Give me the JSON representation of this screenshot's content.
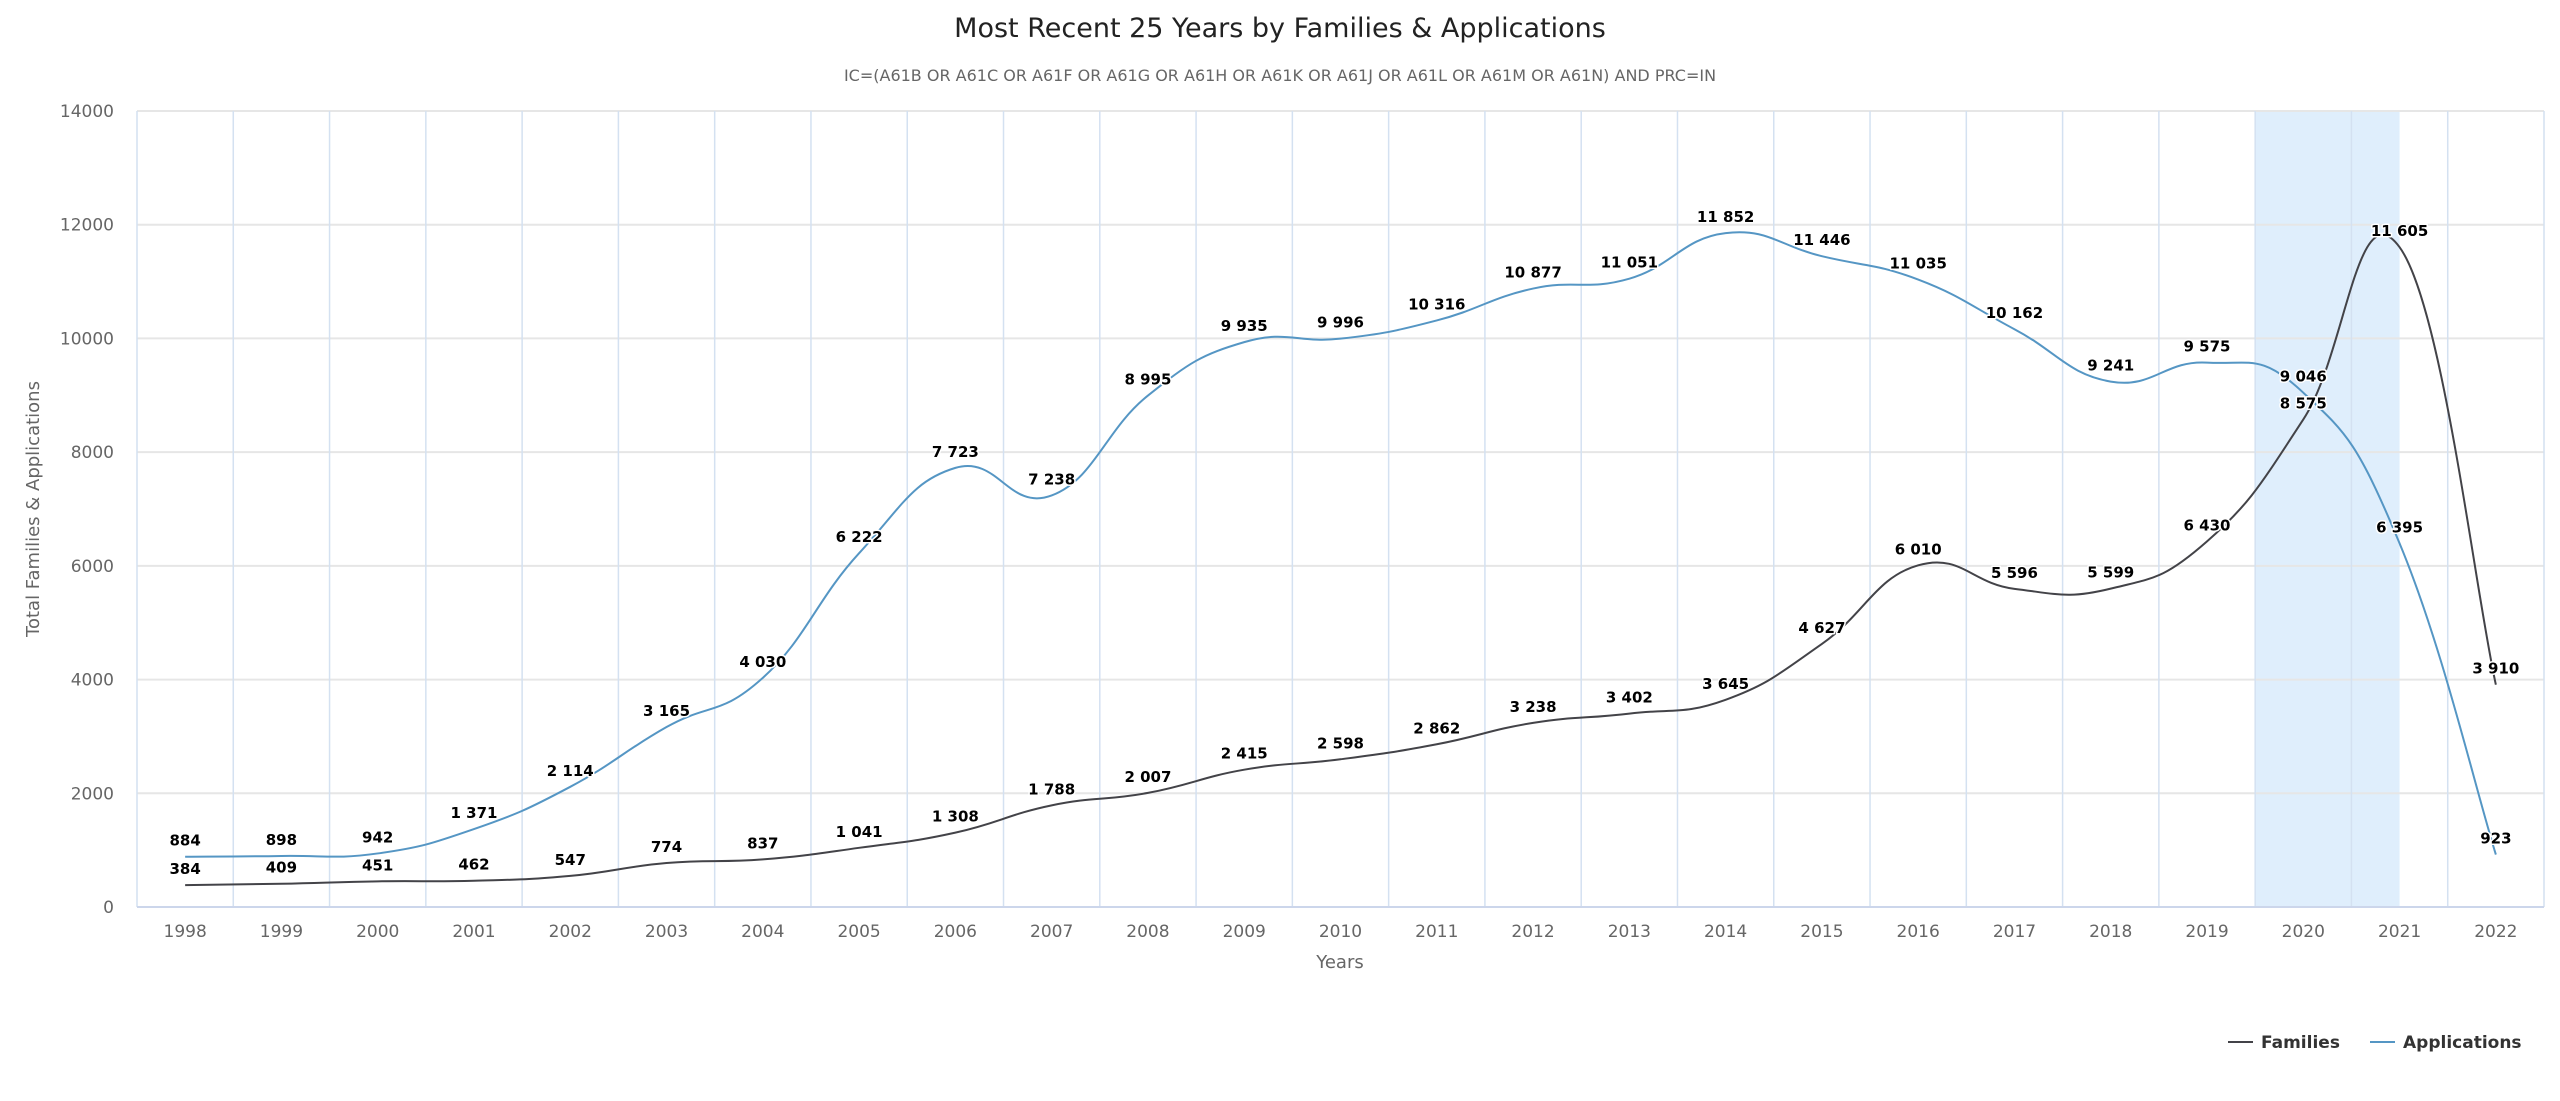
{
  "chart_data": {
    "type": "line",
    "title": "Most Recent 25 Years by Families & Applications",
    "subtitle": "IC=(A61B OR A61C OR A61F OR A61G OR A61H OR A61K OR A61J OR A61L OR A61M OR A61N) AND PRC=IN",
    "xlabel": "Years",
    "ylabel": "Total Families & Applications",
    "ylim": [
      0,
      14000
    ],
    "yticks": [
      0,
      2000,
      4000,
      6000,
      8000,
      10000,
      12000,
      14000
    ],
    "ytick_labels": [
      "0",
      "2000",
      "4000",
      "6000",
      "8000",
      "10000",
      "12000",
      "14000"
    ],
    "grid": true,
    "categories": [
      "1998",
      "1999",
      "2000",
      "2001",
      "2002",
      "2003",
      "2004",
      "2005",
      "2006",
      "2007",
      "2008",
      "2009",
      "2010",
      "2011",
      "2012",
      "2013",
      "2014",
      "2015",
      "2016",
      "2017",
      "2018",
      "2019",
      "2020",
      "2021",
      "2022"
    ],
    "highlight_band": {
      "from_category": "2020",
      "to_category": "2021",
      "color": "#dfeefc",
      "note": "from midpoint before 2020 to center of 2021"
    },
    "series": [
      {
        "name": "Families",
        "color": "#434348",
        "values": [
          384,
          409,
          451,
          462,
          547,
          774,
          837,
          1041,
          1308,
          1788,
          2007,
          2415,
          2598,
          2862,
          3238,
          3402,
          3645,
          4627,
          6010,
          5596,
          5599,
          6430,
          8575,
          11605,
          3910
        ],
        "labels": [
          "384",
          "409",
          "451",
          "462",
          "547",
          "774",
          "837",
          "1 041",
          "1 308",
          "1 788",
          "2 007",
          "2 415",
          "2 598",
          "2 862",
          "3 238",
          "3 402",
          "3 645",
          "4 627",
          "6 010",
          "5 596",
          "5 599",
          "6 430",
          "8 575",
          "11 605",
          "3 910"
        ]
      },
      {
        "name": "Applications",
        "color": "#5596c4",
        "values": [
          884,
          898,
          942,
          1371,
          2114,
          3165,
          4030,
          6222,
          7723,
          7238,
          8995,
          9935,
          9996,
          10316,
          10877,
          11051,
          11852,
          11446,
          11035,
          10162,
          9241,
          9575,
          9046,
          6395,
          923
        ],
        "labels": [
          "884",
          "898",
          "942",
          "1 371",
          "2 114",
          "3 165",
          "4 030",
          "6 222",
          "7 723",
          "7 238",
          "8 995",
          "9 935",
          "9 996",
          "10 316",
          "10 877",
          "11 051",
          "11 852",
          "11 446",
          "11 035",
          "10 162",
          "9 241",
          "9 575",
          "9 046",
          "6 395",
          "923"
        ]
      }
    ],
    "legend": {
      "placement": "bottom-right",
      "items": [
        "Families",
        "Applications"
      ]
    }
  }
}
